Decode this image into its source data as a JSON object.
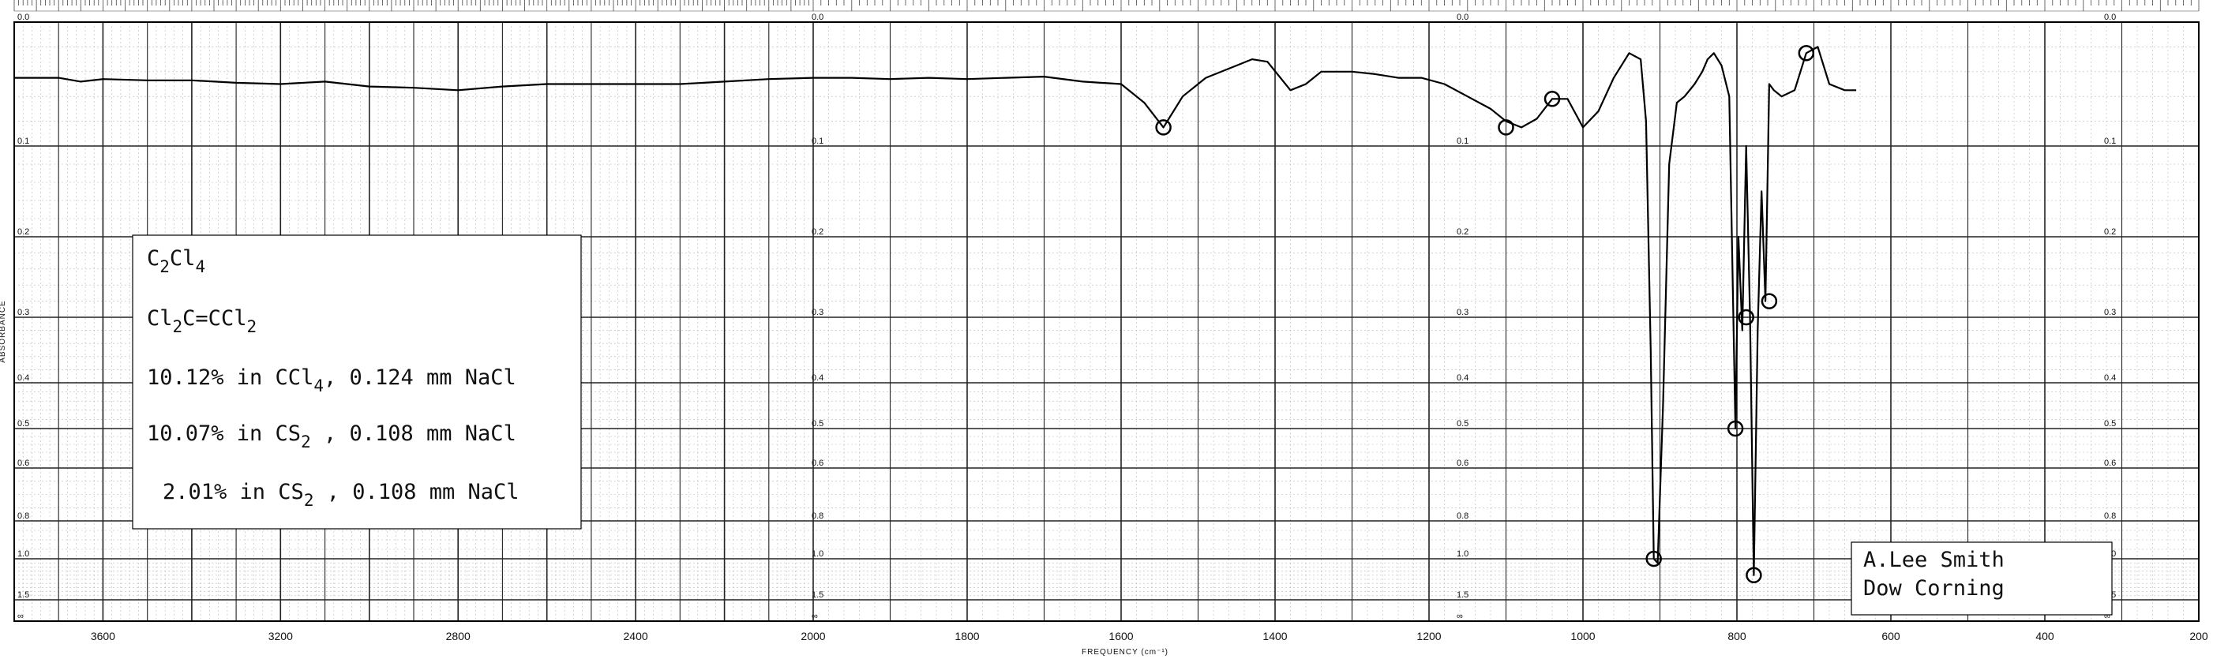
{
  "chart_data": {
    "type": "line",
    "xlabel": "FREQUENCY (cm⁻¹)",
    "ylabel": "ABSORBANCE",
    "x_axis": {
      "reversed": true,
      "segments": [
        {
          "range": [
            3800,
            2000
          ]
        },
        {
          "range": [
            2000,
            200
          ]
        }
      ]
    },
    "y_axis": {
      "scale": "absorbance",
      "range": [
        0,
        "∞"
      ]
    },
    "x_ticks": [
      "3600",
      "3200",
      "2800",
      "2400",
      "2000",
      "1800",
      "1600",
      "1400",
      "1200",
      "1000",
      "800",
      "600",
      "400",
      "200"
    ],
    "y_ticks": [
      "0.0",
      "0.1",
      "0.2",
      "0.3",
      "0.4",
      "0.5",
      "0.6",
      "0.8",
      "1.0",
      "1.5",
      "∞"
    ],
    "grid": true,
    "series": [
      {
        "x": [
          3800,
          3700,
          3650,
          3600,
          3500,
          3400,
          3300,
          3200,
          3100,
          3000,
          2900,
          2800,
          2700,
          2600,
          2500,
          2400,
          2300,
          2200,
          2100,
          2000,
          1950,
          1900,
          1850,
          1800,
          1750,
          1700,
          1650,
          1600,
          1570,
          1545,
          1520,
          1490,
          1450,
          1430,
          1410,
          1380,
          1360,
          1340,
          1300,
          1270,
          1240,
          1210,
          1180,
          1150,
          1120,
          1100,
          1080,
          1060,
          1040,
          1020,
          1000,
          980,
          960,
          940,
          925,
          918,
          912,
          908,
          903,
          896,
          888,
          878,
          868,
          855,
          845,
          838,
          830,
          820,
          810,
          802,
          798,
          793,
          788,
          783,
          778,
          773,
          768,
          763,
          758,
          752,
          742,
          725,
          710,
          695,
          680,
          660,
          645
        ],
        "y": [
          0.045,
          0.045,
          0.048,
          0.046,
          0.047,
          0.047,
          0.049,
          0.05,
          0.048,
          0.052,
          0.053,
          0.055,
          0.052,
          0.05,
          0.05,
          0.05,
          0.05,
          0.048,
          0.046,
          0.045,
          0.045,
          0.046,
          0.045,
          0.046,
          0.045,
          0.044,
          0.048,
          0.05,
          0.065,
          0.085,
          0.06,
          0.045,
          0.035,
          0.03,
          0.032,
          0.055,
          0.05,
          0.04,
          0.04,
          0.042,
          0.045,
          0.045,
          0.05,
          0.06,
          0.07,
          0.08,
          0.085,
          0.078,
          0.062,
          0.062,
          0.085,
          0.072,
          0.045,
          0.025,
          0.03,
          0.08,
          0.35,
          1.0,
          1.05,
          0.45,
          0.12,
          0.065,
          0.06,
          0.05,
          0.04,
          0.03,
          0.025,
          0.035,
          0.06,
          0.5,
          0.2,
          0.32,
          0.1,
          0.3,
          1.2,
          0.32,
          0.15,
          0.28,
          0.05,
          0.055,
          0.06,
          0.055,
          0.025,
          0.02,
          0.05,
          0.055,
          0.055
        ]
      }
    ],
    "annotations": {
      "sample": {
        "formula_parts": [
          "C",
          "2",
          "Cl",
          "4"
        ],
        "structure_parts": [
          "Cl",
          "2",
          "C=CCl",
          "2"
        ],
        "conditions": [
          [
            "10.12% in CCl",
            "4",
            ", 0.124 mm NaCl"
          ],
          [
            "10.07% in CS",
            "2",
            " , 0.108 mm NaCl"
          ],
          [
            "2.01% in CS",
            "2",
            " , 0.108 mm NaCl"
          ]
        ]
      },
      "credit": [
        "A.Lee Smith",
        "Dow Corning"
      ]
    }
  }
}
